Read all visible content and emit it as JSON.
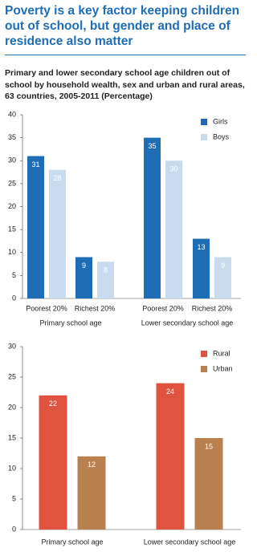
{
  "header": {
    "title": "Poverty is a key factor keeping children out of school, but gender and place of residence also matter",
    "subtitle": "Primary and lower secondary school age children out of school by household wealth, sex and urban and rural areas, 63 countries, 2005-2011 (Percentage)"
  },
  "chart_data": [
    {
      "type": "bar",
      "categories": [
        "Poorest 20%",
        "Richest 20%",
        "Poorest 20%",
        "Richest 20%"
      ],
      "groups": [
        "Primary school age",
        "Lower secondary school age"
      ],
      "series": [
        {
          "name": "Girls",
          "color": "#1f6db5",
          "values": [
            31,
            9,
            35,
            13
          ]
        },
        {
          "name": "Boys",
          "color": "#c9dcef",
          "values": [
            28,
            8,
            30,
            9
          ]
        }
      ],
      "ylim": [
        0,
        40
      ],
      "yticks": [
        0,
        5,
        10,
        15,
        20,
        25,
        30,
        35,
        40
      ],
      "legend": "top-right"
    },
    {
      "type": "bar",
      "categories": [
        "Primary school age",
        "Lower secondary school age"
      ],
      "series": [
        {
          "name": "Rural",
          "color": "#e0533f",
          "values": [
            22,
            24
          ]
        },
        {
          "name": "Urban",
          "color": "#b8814f",
          "values": [
            12,
            15
          ]
        }
      ],
      "ylim": [
        0,
        30
      ],
      "yticks": [
        0,
        5,
        10,
        15,
        20,
        25,
        30
      ],
      "legend": "top-right"
    }
  ]
}
